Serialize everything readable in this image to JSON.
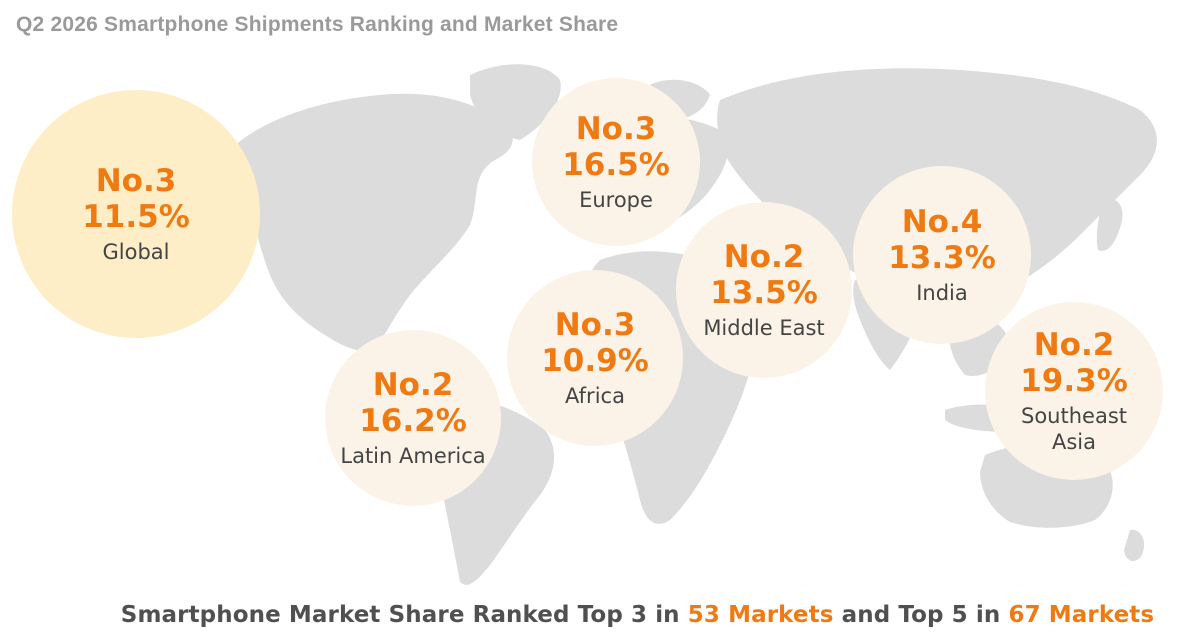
{
  "title": "Q2 2026 Smartphone Shipments Ranking and Market Share",
  "map_fill": "#dcdcdc",
  "accent_color": "#f07a12",
  "bubble_color": "#fcf3e8",
  "global_bubble_color": "#fdeec7",
  "regions": [
    {
      "id": "global",
      "rank": "No.3",
      "share": "11.5%",
      "name": "Global"
    },
    {
      "id": "europe",
      "rank": "No.3",
      "share": "16.5%",
      "name": "Europe"
    },
    {
      "id": "india",
      "rank": "No.4",
      "share": "13.3%",
      "name": "India"
    },
    {
      "id": "middle_east",
      "rank": "No.2",
      "share": "13.5%",
      "name": "Middle East"
    },
    {
      "id": "africa",
      "rank": "No.3",
      "share": "10.9%",
      "name": "Africa"
    },
    {
      "id": "southeast_asia",
      "rank": "No.2",
      "share": "19.3%",
      "name": "Southeast\nAsia"
    },
    {
      "id": "latin_america",
      "rank": "No.2",
      "share": "16.2%",
      "name": "Latin America"
    }
  ],
  "footer": {
    "prefix": "Smartphone Market Share Ranked Top 3 in ",
    "top3_markets": "53 Markets",
    "middle": " and Top 5 in ",
    "top5_markets": "67 Markets"
  }
}
